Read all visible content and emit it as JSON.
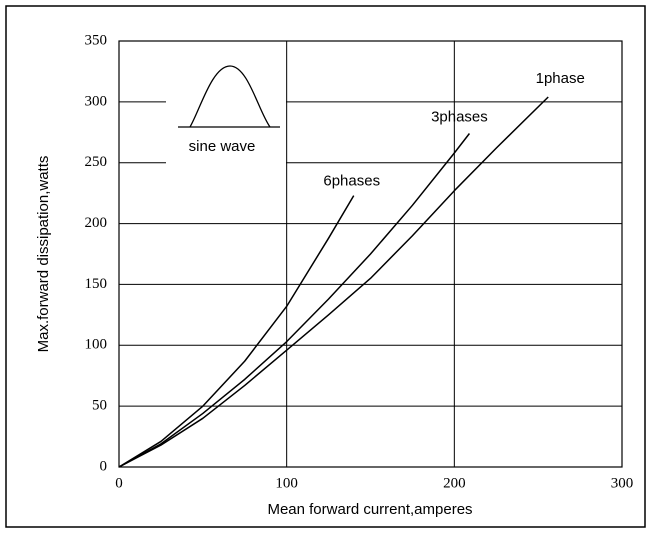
{
  "chart_data": {
    "type": "line",
    "xlabel": "Mean forward current,amperes",
    "ylabel": "Max.forward dissipation,watts",
    "annotation": "sine wave",
    "xlim": [
      0,
      300
    ],
    "xticks": [
      0,
      100,
      200,
      300
    ],
    "ylim": [
      0,
      350
    ],
    "yticks": [
      0,
      50,
      100,
      150,
      200,
      250,
      300,
      350
    ],
    "grid": true,
    "series": [
      {
        "name": "1phase",
        "color": "#000000",
        "x": [
          0,
          25,
          50,
          75,
          100,
          125,
          150,
          175,
          200,
          225,
          256
        ],
        "values": [
          0,
          18,
          40,
          67,
          96,
          125,
          155,
          190,
          227,
          262,
          304
        ]
      },
      {
        "name": "3phases",
        "color": "#000000",
        "x": [
          0,
          25,
          50,
          75,
          100,
          125,
          150,
          175,
          200,
          209
        ],
        "values": [
          0,
          19,
          44,
          72,
          103,
          138,
          175,
          215,
          258,
          274
        ]
      },
      {
        "name": "6phases",
        "color": "#000000",
        "x": [
          0,
          25,
          50,
          75,
          100,
          125,
          140
        ],
        "values": [
          0,
          21,
          50,
          87,
          132,
          188,
          223
        ]
      }
    ]
  }
}
